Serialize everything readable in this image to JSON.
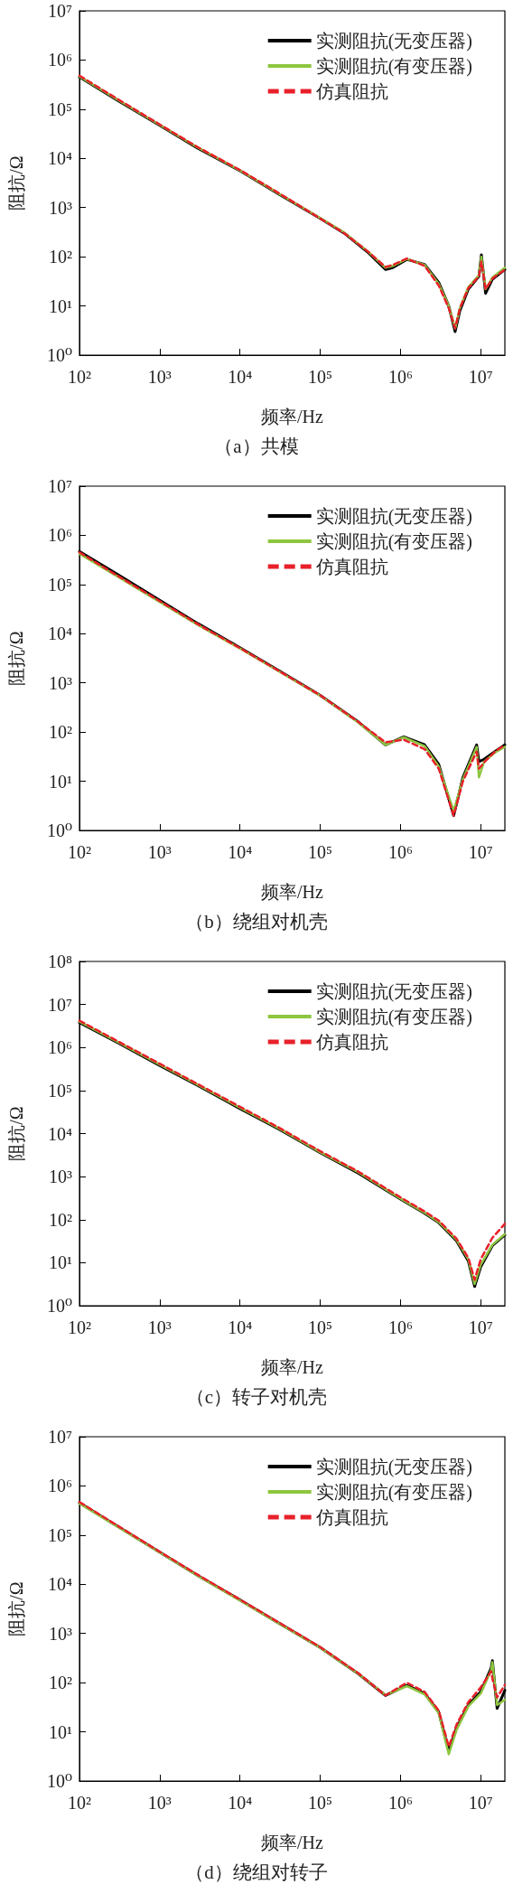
{
  "chart_data": [
    {
      "type": "line",
      "title": "（a）共模",
      "xlabel": "频率/Hz",
      "ylabel": "阻抗/Ω",
      "log": "xy",
      "grid": false,
      "legend": "top right",
      "marker": "none",
      "x": [
        100,
        300,
        1000,
        3000,
        10000,
        30000,
        100000,
        200000,
        400000,
        650000,
        800000,
        1200000,
        2000000,
        3000000,
        4000000,
        4800000,
        5500000,
        7000000,
        9500000,
        10200000,
        11500000,
        14000000,
        20000000
      ],
      "xlim": [
        100,
        20000000
      ],
      "ylim": [
        1,
        10000000
      ],
      "xticks": [
        {
          "value": 100,
          "label": "10²"
        },
        {
          "value": 1000,
          "label": "10³"
        },
        {
          "value": 10000,
          "label": "10⁴"
        },
        {
          "value": 100000,
          "label": "10⁵"
        },
        {
          "value": 1000000,
          "label": "10⁶"
        },
        {
          "value": 10000000,
          "label": "10⁷"
        }
      ],
      "yticks": [
        {
          "value": 1,
          "label": "10⁰"
        },
        {
          "value": 10,
          "label": "10¹"
        },
        {
          "value": 100,
          "label": "10²"
        },
        {
          "value": 1000,
          "label": "10³"
        },
        {
          "value": 10000,
          "label": "10⁴"
        },
        {
          "value": 100000,
          "label": "10⁵"
        },
        {
          "value": 1000000,
          "label": "10⁶"
        },
        {
          "value": 10000000,
          "label": "10⁷"
        }
      ],
      "series": [
        {
          "name": "实测阻抗(无变压器)",
          "color": "#000000",
          "line_style": "solid",
          "values": [
            450000,
            150000,
            47000,
            16000,
            5600,
            1900,
            600,
            300,
            120,
            55,
            60,
            88,
            70,
            30,
            10,
            3,
            8,
            22,
            40,
            110,
            18,
            35,
            55
          ]
        },
        {
          "name": "实测阻抗(有变压器)",
          "color": "#8dc63f",
          "line_style": "solid",
          "values": [
            460000,
            155000,
            48000,
            16500,
            5700,
            1950,
            610,
            310,
            125,
            60,
            65,
            90,
            68,
            28,
            10,
            3.5,
            9,
            24,
            42,
            100,
            22,
            38,
            60
          ]
        },
        {
          "name": "仿真阻抗",
          "color": "#e8202a",
          "line_style": "dashed",
          "values": [
            480000,
            160000,
            49000,
            16800,
            5800,
            2000,
            600,
            300,
            125,
            62,
            68,
            92,
            65,
            26,
            9,
            3.5,
            9,
            23,
            40,
            80,
            22,
            36,
            55
          ]
        }
      ]
    },
    {
      "type": "line",
      "title": "（b）绕组对机壳",
      "xlabel": "频率/Hz",
      "ylabel": "阻抗/Ω",
      "log": "xy",
      "grid": false,
      "legend": "top right",
      "marker": "none",
      "x": [
        100,
        300,
        1000,
        3000,
        10000,
        30000,
        100000,
        300000,
        650000,
        1100000,
        2000000,
        3000000,
        4600000,
        6000000,
        8900000,
        9500000,
        11000000,
        15000000,
        20000000
      ],
      "xlim": [
        100,
        20000000
      ],
      "ylim": [
        1,
        10000000
      ],
      "xticks": [
        {
          "value": 100,
          "label": "10²"
        },
        {
          "value": 1000,
          "label": "10³"
        },
        {
          "value": 10000,
          "label": "10⁴"
        },
        {
          "value": 100000,
          "label": "10⁵"
        },
        {
          "value": 1000000,
          "label": "10⁶"
        },
        {
          "value": 10000000,
          "label": "10⁷"
        }
      ],
      "yticks": [
        {
          "value": 1,
          "label": "10⁰"
        },
        {
          "value": 10,
          "label": "10¹"
        },
        {
          "value": 100,
          "label": "10²"
        },
        {
          "value": 1000,
          "label": "10³"
        },
        {
          "value": 10000,
          "label": "10⁴"
        },
        {
          "value": 100000,
          "label": "10⁵"
        },
        {
          "value": 1000000,
          "label": "10⁶"
        },
        {
          "value": 10000000,
          "label": "10⁷"
        }
      ],
      "series": [
        {
          "name": "实测阻抗(无变压器)",
          "color": "#000000",
          "line_style": "solid",
          "values": [
            470000,
            160000,
            48000,
            16000,
            5200,
            1800,
            560,
            160,
            55,
            80,
            55,
            22,
            2,
            12,
            55,
            25,
            28,
            40,
            55
          ]
        },
        {
          "name": "实测阻抗(有变压器)",
          "color": "#8dc63f",
          "line_style": "solid",
          "values": [
            420000,
            145000,
            44000,
            15000,
            5000,
            1750,
            550,
            155,
            55,
            78,
            52,
            20,
            2.5,
            11,
            50,
            12,
            25,
            38,
            50
          ]
        },
        {
          "name": "仿真阻抗",
          "color": "#e8202a",
          "line_style": "dashed",
          "values": [
            450000,
            150000,
            46000,
            15500,
            5100,
            1780,
            560,
            160,
            62,
            70,
            45,
            18,
            2,
            10,
            40,
            18,
            24,
            40,
            55
          ]
        }
      ]
    },
    {
      "type": "line",
      "title": "（c）转子对机壳",
      "xlabel": "频率/Hz",
      "ylabel": "阻抗/Ω",
      "log": "xy",
      "grid": false,
      "legend": "top right",
      "marker": "none",
      "x": [
        100,
        300,
        1000,
        3000,
        10000,
        30000,
        100000,
        300000,
        1000000,
        2000000,
        3000000,
        5000000,
        7000000,
        8400000,
        10000000,
        14000000,
        20000000
      ],
      "xlim": [
        100,
        20000000
      ],
      "ylim": [
        1,
        100000000
      ],
      "xticks": [
        {
          "value": 100,
          "label": "10²"
        },
        {
          "value": 1000,
          "label": "10³"
        },
        {
          "value": 10000,
          "label": "10⁴"
        },
        {
          "value": 100000,
          "label": "10⁵"
        },
        {
          "value": 1000000,
          "label": "10⁶"
        },
        {
          "value": 10000000,
          "label": "10⁷"
        }
      ],
      "yticks": [
        {
          "value": 1,
          "label": "10⁰"
        },
        {
          "value": 10,
          "label": "10¹"
        },
        {
          "value": 100,
          "label": "10²"
        },
        {
          "value": 1000,
          "label": "10³"
        },
        {
          "value": 10000,
          "label": "10⁴"
        },
        {
          "value": 100000,
          "label": "10⁵"
        },
        {
          "value": 1000000,
          "label": "10⁶"
        },
        {
          "value": 10000000,
          "label": "10⁷"
        },
        {
          "value": 100000000,
          "label": "10⁸"
        }
      ],
      "series": [
        {
          "name": "实测阻抗(无变压器)",
          "color": "#000000",
          "line_style": "solid",
          "values": [
            3800000,
            1300000,
            380000,
            130000,
            38000,
            13000,
            3600,
            1200,
            300,
            140,
            85,
            32,
            11,
            2.8,
            8,
            25,
            44
          ]
        },
        {
          "name": "实测阻抗(有变压器)",
          "color": "#8dc63f",
          "line_style": "solid",
          "values": [
            4000000,
            1350000,
            400000,
            135000,
            40000,
            13500,
            3700,
            1250,
            310,
            145,
            88,
            34,
            12,
            3.2,
            9,
            26,
            46
          ]
        },
        {
          "name": "仿真阻抗",
          "color": "#e8202a",
          "line_style": "dashed",
          "values": [
            4200000,
            1400000,
            420000,
            140000,
            42000,
            14000,
            3900,
            1300,
            330,
            155,
            95,
            36,
            13,
            4,
            12,
            38,
            80
          ]
        }
      ]
    },
    {
      "type": "line",
      "title": "（d）绕组对转子",
      "xlabel": "频率/Hz",
      "ylabel": "阻抗/Ω",
      "log": "xy",
      "grid": false,
      "legend": "top right",
      "marker": "none",
      "x": [
        100,
        300,
        1000,
        3000,
        10000,
        30000,
        100000,
        300000,
        650000,
        1200000,
        2000000,
        3000000,
        4000000,
        5000000,
        7000000,
        10000000,
        13500000,
        14000000,
        16000000,
        20000000
      ],
      "xlim": [
        100,
        20000000
      ],
      "ylim": [
        1,
        10000000
      ],
      "xticks": [
        {
          "value": 100,
          "label": "10²"
        },
        {
          "value": 1000,
          "label": "10³"
        },
        {
          "value": 10000,
          "label": "10⁴"
        },
        {
          "value": 100000,
          "label": "10⁵"
        },
        {
          "value": 1000000,
          "label": "10⁶"
        },
        {
          "value": 10000000,
          "label": "10⁷"
        }
      ],
      "yticks": [
        {
          "value": 1,
          "label": "10⁰"
        },
        {
          "value": 10,
          "label": "10¹"
        },
        {
          "value": 100,
          "label": "10²"
        },
        {
          "value": 1000,
          "label": "10³"
        },
        {
          "value": 10000,
          "label": "10⁴"
        },
        {
          "value": 100000,
          "label": "10⁵"
        },
        {
          "value": 1000000,
          "label": "10⁶"
        },
        {
          "value": 10000000,
          "label": "10⁷"
        }
      ],
      "series": [
        {
          "name": "实测阻抗(无变压器)",
          "color": "#000000",
          "line_style": "solid",
          "values": [
            450000,
            150000,
            45000,
            15000,
            4800,
            1650,
            520,
            150,
            55,
            88,
            60,
            25,
            4,
            12,
            35,
            65,
            200,
            280,
            30,
            70
          ]
        },
        {
          "name": "实测阻抗(有变压器)",
          "color": "#8dc63f",
          "line_style": "solid",
          "values": [
            440000,
            148000,
            44500,
            14800,
            4700,
            1630,
            515,
            150,
            56,
            85,
            58,
            24,
            3.5,
            11,
            33,
            60,
            180,
            260,
            35,
            45
          ]
        },
        {
          "name": "仿真阻抗",
          "color": "#e8202a",
          "line_style": "dashed",
          "values": [
            470000,
            155000,
            46000,
            15500,
            4900,
            1700,
            530,
            155,
            55,
            100,
            65,
            27,
            5,
            14,
            40,
            80,
            170,
            120,
            50,
            90
          ]
        }
      ]
    }
  ]
}
